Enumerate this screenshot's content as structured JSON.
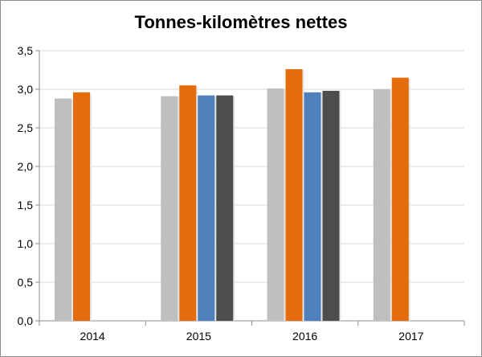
{
  "chart_data": {
    "type": "bar",
    "title": "Tonnes-kilomètres nettes",
    "categories": [
      "2014",
      "2015",
      "2016",
      "2017"
    ],
    "ylim": [
      0,
      3.5
    ],
    "yticks": [
      "0,0",
      "0,5",
      "1,0",
      "1,5",
      "2,0",
      "2,5",
      "3,0",
      "3,5"
    ],
    "grid": true,
    "legend": "none",
    "series": [
      {
        "color": "#bfbfbf",
        "values": [
          2.88,
          2.91,
          3.01,
          3.0
        ]
      },
      {
        "color": "#e46c0a",
        "values": [
          2.96,
          3.05,
          3.26,
          3.15
        ]
      },
      {
        "color": "#4f81bd",
        "values": [
          null,
          2.92,
          2.96,
          null
        ]
      },
      {
        "color": "#4d4d4f",
        "values": [
          null,
          2.92,
          2.98,
          null
        ]
      }
    ]
  }
}
